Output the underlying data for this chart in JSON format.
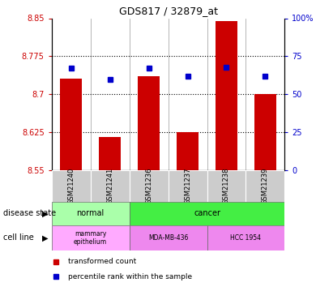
{
  "title": "GDS817 / 32879_at",
  "samples": [
    "GSM21240",
    "GSM21241",
    "GSM21236",
    "GSM21237",
    "GSM21238",
    "GSM21239"
  ],
  "transformed_counts": [
    8.73,
    8.615,
    8.735,
    8.625,
    8.845,
    8.7
  ],
  "percentile_ranks": [
    67,
    60,
    67,
    62,
    68,
    62
  ],
  "ylim_left": [
    8.55,
    8.85
  ],
  "ylim_right": [
    0,
    100
  ],
  "yticks_left": [
    8.55,
    8.625,
    8.7,
    8.775,
    8.85
  ],
  "ytick_labels_left": [
    "8.55",
    "8.625",
    "8.7",
    "8.775",
    "8.85"
  ],
  "yticks_right": [
    0,
    25,
    50,
    75,
    100
  ],
  "ytick_labels_right": [
    "0",
    "25",
    "50",
    "75",
    "100%"
  ],
  "bar_color": "#cc0000",
  "dot_color": "#0000cc",
  "bg_color": "#ffffff",
  "plot_bg": "#ffffff",
  "title_fontsize": 9,
  "disease_state_label": "disease state",
  "cell_line_label": "cell line",
  "normal_color": "#aaffaa",
  "cancer_color": "#44ee44",
  "mammary_color": "#ffaaff",
  "mda_color": "#ee88ee",
  "hcc_color": "#ee88ee",
  "sample_bg_color": "#cccccc",
  "legend_items": [
    {
      "label": "transformed count",
      "color": "#cc0000"
    },
    {
      "label": "percentile rank within the sample",
      "color": "#0000cc"
    }
  ]
}
